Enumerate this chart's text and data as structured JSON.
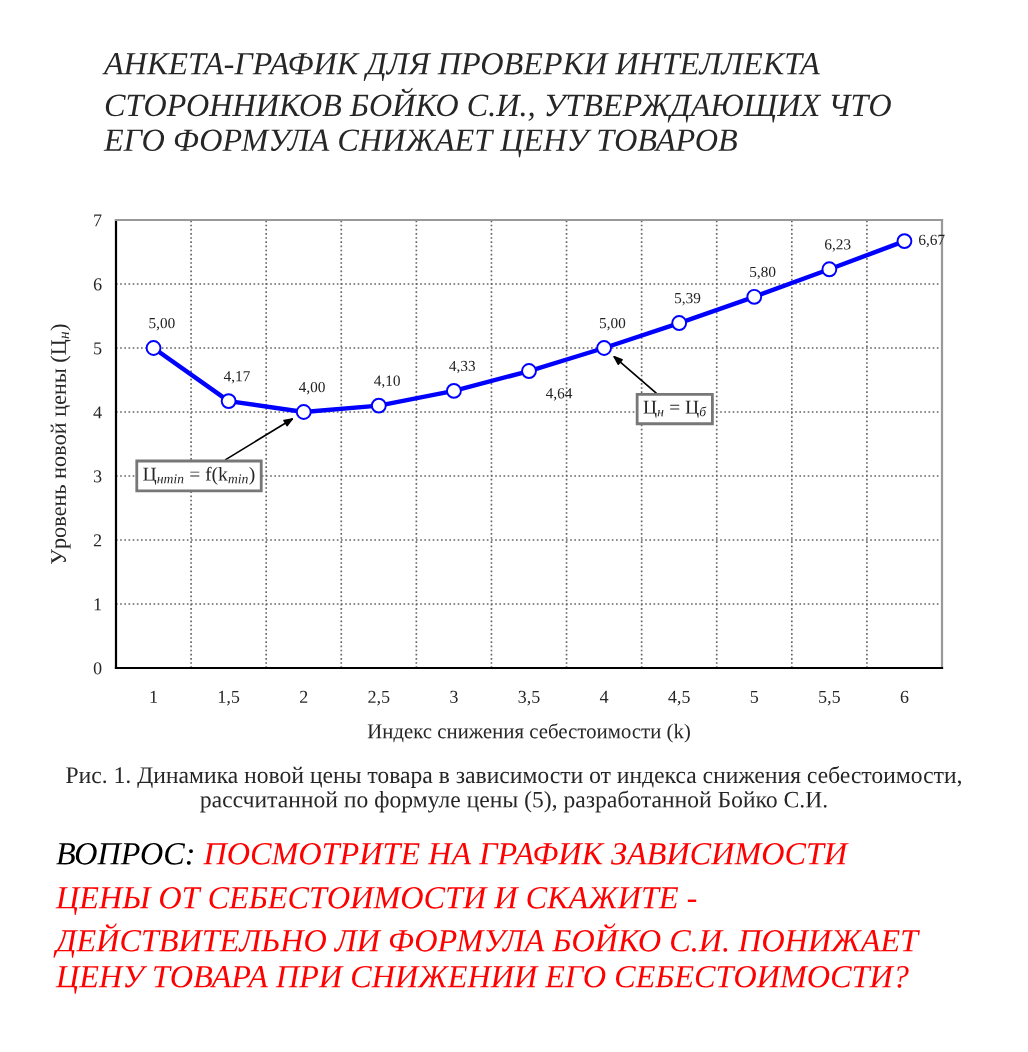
{
  "chart_data": {
    "type": "line",
    "title": "АНКЕТА-ГРАФИК ДЛЯ ПРОВЕРКИ ИНТЕЛЛЕКТА\nСТОРОННИКОВ БОЙКО С.И., УТВЕРЖДАЮЩИХ ЧТО\nЕГО ФОРМУЛА СНИЖАЕТ ЦЕНУ ТОВАРОВ",
    "xlabel": "Индекс снижения себестоимости (k)",
    "ylabel": "Уровень новой цены (Ц$_{н}$)",
    "categories": [
      "1",
      "1,5",
      "2",
      "2,5",
      "3",
      "3,5",
      "4",
      "4,5",
      "5",
      "5,5",
      "6"
    ],
    "series": [
      {
        "color": "#0000ff",
        "values": [
          5.0,
          4.17,
          4.0,
          4.1,
          4.33,
          4.64,
          5.0,
          5.39,
          5.8,
          6.23,
          6.67
        ],
        "value_labels": [
          "5,00",
          "4,17",
          "4,00",
          "4,10",
          "4,33",
          "4,64",
          "5,00",
          "5,39",
          "5,80",
          "6,23",
          "6,67"
        ]
      }
    ],
    "ylim": [
      0,
      7
    ],
    "yticks": [
      0,
      1,
      2,
      3,
      4,
      5,
      6,
      7
    ],
    "grid": true,
    "marker": "circle",
    "line_style": "solid",
    "annotations": [
      {
        "text": "Ц$_{нmin}$ = f(k$_{min}$)",
        "x": "2",
        "y": 4.0
      },
      {
        "text": "Ц$_{н}$ = Ц$_{б}$",
        "x": "4",
        "y": 5.0
      },
      "Рис. 1. Динамика новой цены товара в зависимости от индекса снижения себестоимости,\nрассчитанной по формуле цены (5), разработанной Бойко С.И.",
      "ВОПРОС:",
      "ПОСМОТРИТЕ НА ГРАФИК ЗАВИСИМОСТИ",
      "ЦЕНЫ ОТ СЕБЕСТОИМОСТИ И СКАЖИТЕ -\nДЕЙСТВИТЕЛЬНО ЛИ ФОРМУЛА БОЙКО С.И. ПОНИЖАЕТ\nЦЕНУ ТОВАРА ПРИ СНИЖЕНИИ ЕГО СЕБЕСТОИМОСТИ?"
    ]
  }
}
